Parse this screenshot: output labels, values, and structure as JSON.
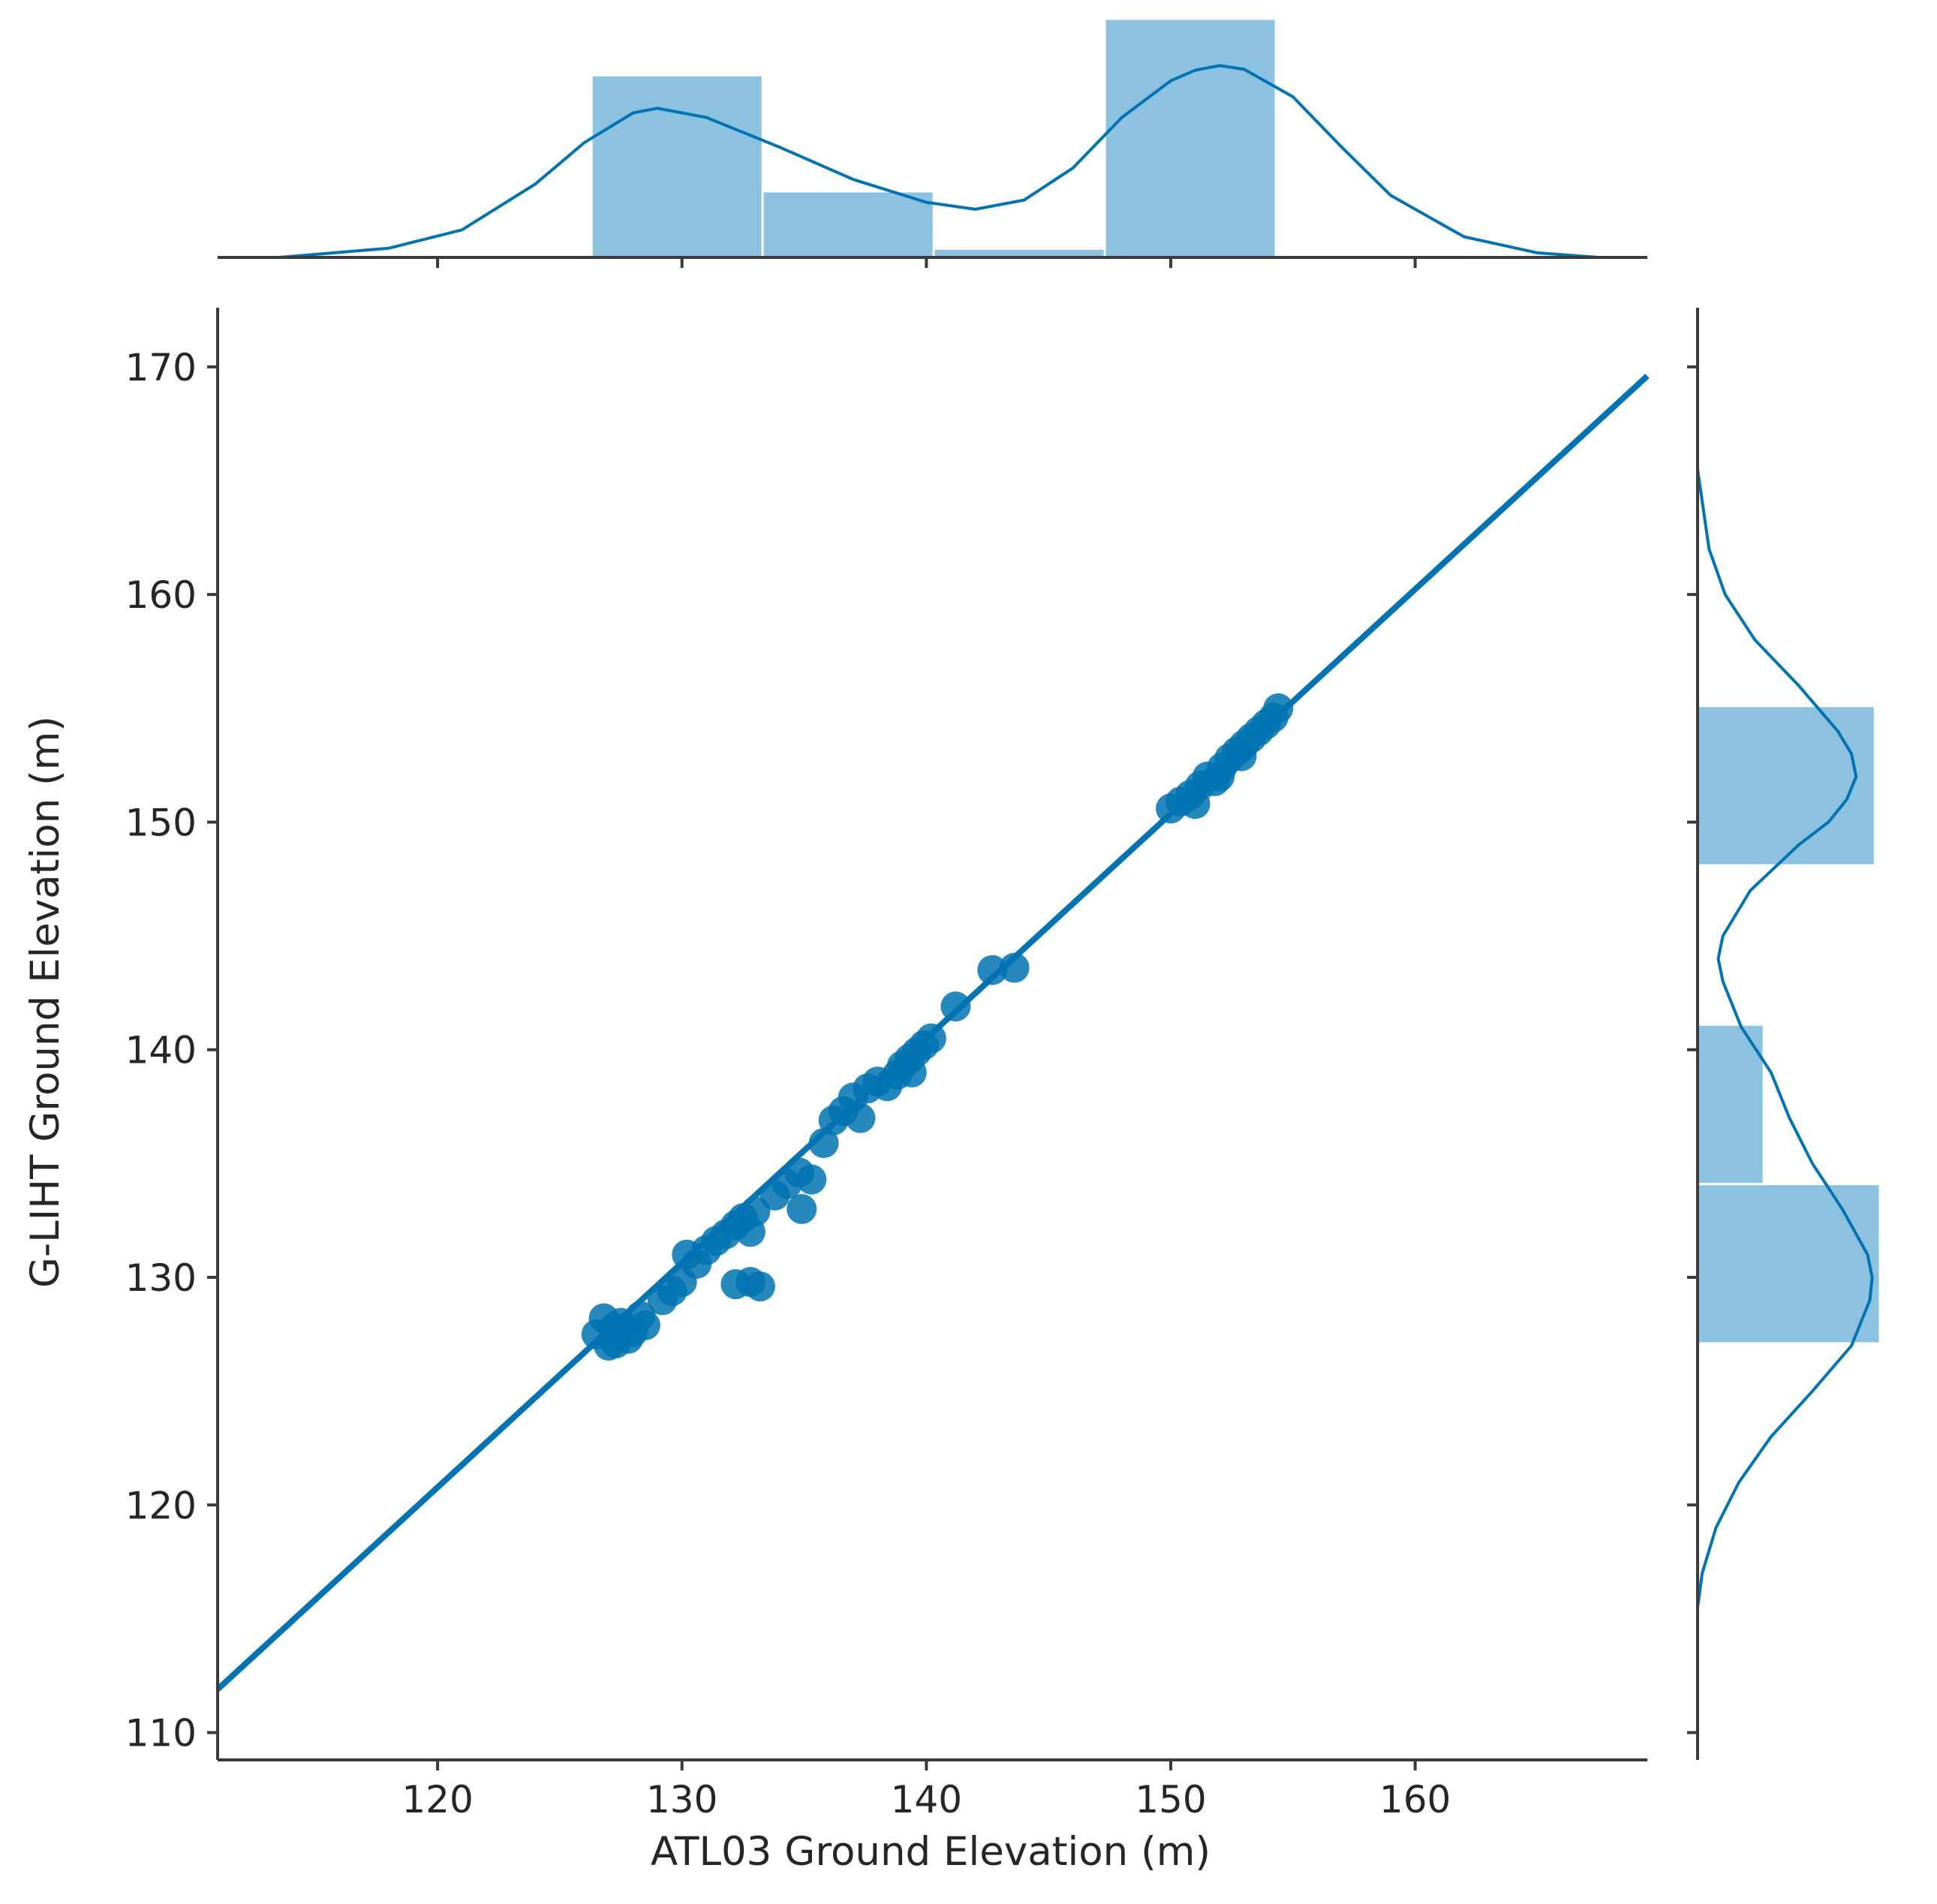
{
  "chart_data": {
    "type": "scatter",
    "title": "",
    "xlabel": "ATL03 Ground Elevation (m)",
    "ylabel": "G-LIHT Ground Elevation (m)",
    "xlim": [
      111,
      169.5
    ],
    "ylim": [
      108.8,
      172.6
    ],
    "xticks": [
      120,
      130,
      140,
      150,
      160
    ],
    "yticks": [
      110,
      120,
      130,
      140,
      150,
      160,
      170
    ],
    "grid": false,
    "color": "#0173b2",
    "hist_color": "#8cc1df",
    "regression_line": {
      "x": [
        111,
        169.5
      ],
      "y": [
        111.9,
        169.6
      ]
    },
    "points": [
      {
        "x": 126.5,
        "y": 127.5
      },
      {
        "x": 126.8,
        "y": 128.2
      },
      {
        "x": 127.0,
        "y": 127.0
      },
      {
        "x": 127.2,
        "y": 127.8
      },
      {
        "x": 127.5,
        "y": 128.0
      },
      {
        "x": 127.8,
        "y": 127.3
      },
      {
        "x": 128.0,
        "y": 127.6
      },
      {
        "x": 128.3,
        "y": 128.3
      },
      {
        "x": 128.5,
        "y": 127.9
      },
      {
        "x": 127.3,
        "y": 127.1
      },
      {
        "x": 129.2,
        "y": 129.0
      },
      {
        "x": 129.6,
        "y": 129.4
      },
      {
        "x": 130.0,
        "y": 129.8
      },
      {
        "x": 130.2,
        "y": 131.0
      },
      {
        "x": 130.6,
        "y": 130.6
      },
      {
        "x": 131.0,
        "y": 131.2
      },
      {
        "x": 131.4,
        "y": 131.6
      },
      {
        "x": 131.8,
        "y": 131.9
      },
      {
        "x": 132.2,
        "y": 132.3
      },
      {
        "x": 132.5,
        "y": 132.6
      },
      {
        "x": 132.8,
        "y": 132.0
      },
      {
        "x": 133.0,
        "y": 132.9
      },
      {
        "x": 132.2,
        "y": 129.7
      },
      {
        "x": 132.8,
        "y": 129.8
      },
      {
        "x": 133.2,
        "y": 129.6
      },
      {
        "x": 133.8,
        "y": 133.6
      },
      {
        "x": 134.3,
        "y": 134.1
      },
      {
        "x": 134.8,
        "y": 134.6
      },
      {
        "x": 134.9,
        "y": 133.0
      },
      {
        "x": 135.3,
        "y": 134.3
      },
      {
        "x": 135.8,
        "y": 135.9
      },
      {
        "x": 136.2,
        "y": 136.9
      },
      {
        "x": 136.6,
        "y": 137.3
      },
      {
        "x": 137.0,
        "y": 137.9
      },
      {
        "x": 137.3,
        "y": 137.0
      },
      {
        "x": 137.6,
        "y": 138.3
      },
      {
        "x": 138.0,
        "y": 138.6
      },
      {
        "x": 138.4,
        "y": 138.4
      },
      {
        "x": 138.8,
        "y": 138.9
      },
      {
        "x": 139.0,
        "y": 139.3
      },
      {
        "x": 139.3,
        "y": 139.6
      },
      {
        "x": 139.6,
        "y": 139.9
      },
      {
        "x": 139.9,
        "y": 140.2
      },
      {
        "x": 140.2,
        "y": 140.5
      },
      {
        "x": 139.4,
        "y": 139.0
      },
      {
        "x": 141.2,
        "y": 141.9
      },
      {
        "x": 142.7,
        "y": 143.5
      },
      {
        "x": 143.6,
        "y": 143.6
      },
      {
        "x": 150.0,
        "y": 150.6
      },
      {
        "x": 150.4,
        "y": 150.9
      },
      {
        "x": 150.8,
        "y": 151.2
      },
      {
        "x": 151.2,
        "y": 151.6
      },
      {
        "x": 151.5,
        "y": 152.0
      },
      {
        "x": 151.8,
        "y": 151.8
      },
      {
        "x": 152.1,
        "y": 152.4
      },
      {
        "x": 152.4,
        "y": 152.8
      },
      {
        "x": 152.7,
        "y": 153.1
      },
      {
        "x": 153.0,
        "y": 153.4
      },
      {
        "x": 153.3,
        "y": 153.7
      },
      {
        "x": 153.6,
        "y": 154.0
      },
      {
        "x": 153.9,
        "y": 154.3
      },
      {
        "x": 154.2,
        "y": 154.6
      },
      {
        "x": 154.4,
        "y": 155.0
      },
      {
        "x": 151.0,
        "y": 150.8
      },
      {
        "x": 152.0,
        "y": 152.0
      },
      {
        "x": 152.9,
        "y": 152.9
      }
    ],
    "marginal_x_hist": {
      "bins": [
        126.3,
        133.3,
        140.3,
        147.3,
        154.3
      ],
      "densities": [
        0.0397,
        0.0144,
        0.0019,
        0.052
      ]
    },
    "marginal_y_hist": {
      "bins": [
        127.1,
        134.1,
        141.1,
        148.1,
        155.1
      ],
      "densities": [
        0.0397,
        0.0144,
        0.0,
        0.0386
      ]
    },
    "marginal_x_kde": {
      "x": [
        113.5,
        118,
        121,
        124,
        126,
        128,
        129,
        131,
        134,
        137,
        140,
        142,
        144,
        146,
        148,
        150,
        151,
        152,
        153,
        155,
        157,
        159,
        162,
        165,
        167.5
      ],
      "density": [
        0.0,
        0.002,
        0.006,
        0.016,
        0.025,
        0.0315,
        0.0325,
        0.0305,
        0.024,
        0.017,
        0.012,
        0.0105,
        0.0125,
        0.0195,
        0.0305,
        0.0385,
        0.0408,
        0.0418,
        0.041,
        0.035,
        0.024,
        0.0135,
        0.0045,
        0.001,
        0.0
      ]
    },
    "marginal_y_kde": {
      "y": [
        115.5,
        117,
        119,
        121,
        123,
        125,
        127,
        129,
        130,
        131,
        133,
        135,
        137,
        139,
        141,
        143,
        144,
        145,
        147,
        149,
        150,
        151,
        152,
        153,
        154,
        156,
        158,
        160,
        162,
        165.5
      ],
      "density": [
        0.0,
        0.001,
        0.004,
        0.009,
        0.016,
        0.025,
        0.0335,
        0.0375,
        0.038,
        0.037,
        0.0315,
        0.025,
        0.02,
        0.016,
        0.0095,
        0.0055,
        0.0045,
        0.0055,
        0.0115,
        0.022,
        0.0285,
        0.0325,
        0.0345,
        0.0335,
        0.0305,
        0.022,
        0.0125,
        0.006,
        0.0025,
        0.0
      ]
    }
  }
}
